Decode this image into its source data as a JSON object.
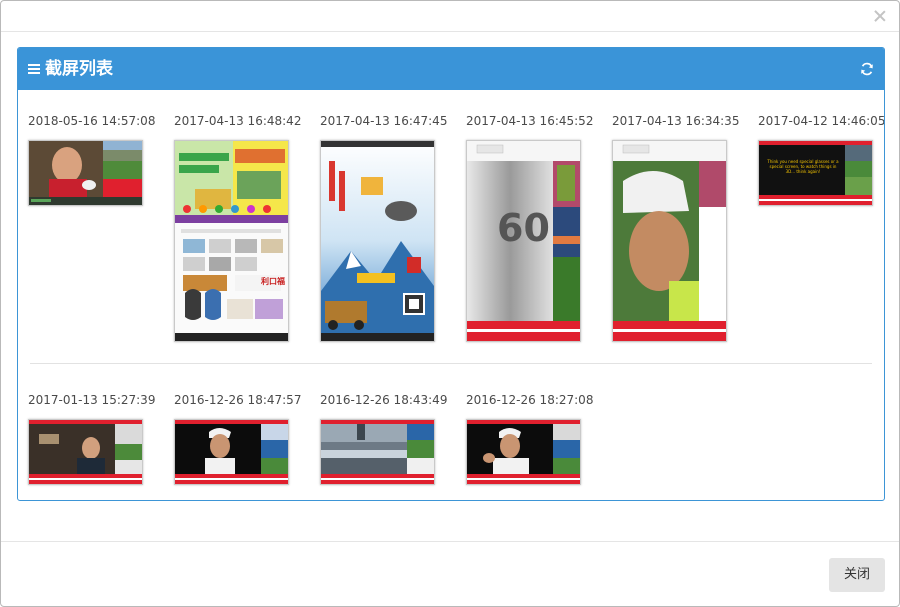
{
  "panel": {
    "title": "截屏列表"
  },
  "screenshots": [
    {
      "time": "2018-05-16 14:57:08"
    },
    {
      "time": "2017-04-13 16:48:42"
    },
    {
      "time": "2017-04-13 16:47:45"
    },
    {
      "time": "2017-04-13 16:45:52"
    },
    {
      "time": "2017-04-13 16:34:35"
    },
    {
      "time": "2017-04-12 14:46:05"
    },
    {
      "time": "2017-01-13 15:27:39"
    },
    {
      "time": "2016-12-26 18:47:57"
    },
    {
      "time": "2016-12-26 18:43:49"
    },
    {
      "time": "2016-12-26 18:27:08"
    }
  ],
  "thumb_text": {
    "shop_a": "利口福",
    "poster_num": "60",
    "poster_caption": "Think you need special glasses or a special screen, to watch things in 3D... think again!"
  },
  "footer": {
    "close_label": "关闭"
  },
  "colors": {
    "panel_header": "#3a94d8",
    "panel_border": "#3d95d6",
    "ad_red": "#e0202e"
  }
}
